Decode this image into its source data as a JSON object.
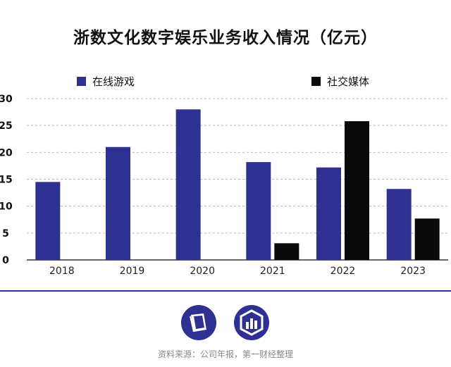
{
  "chart_data": {
    "type": "bar",
    "title": "浙数文化数字娱乐业务收入情况（亿元）",
    "categories": [
      "2018",
      "2019",
      "2020",
      "2021",
      "2022",
      "2023"
    ],
    "series": [
      {
        "name": "在线游戏",
        "color": "#2e3192",
        "values": [
          14.5,
          21,
          28,
          18.2,
          17.2,
          13.2
        ]
      },
      {
        "name": "社交媒体",
        "color": "#0a0a0a",
        "values": [
          null,
          null,
          null,
          3.1,
          25.8,
          7.7
        ]
      }
    ],
    "yticks": [
      0,
      5,
      10,
      15,
      20,
      25,
      30
    ],
    "ylim": [
      0,
      30
    ],
    "grid": "dashed-horizontal",
    "legend": "top"
  },
  "source": "资料来源：公司年报，第一财经整理",
  "logos": [
    {
      "icon": "book-logo-icon",
      "color": "#2e3192"
    },
    {
      "icon": "bar-chart-logo-icon",
      "color": "#2e3192"
    }
  ]
}
